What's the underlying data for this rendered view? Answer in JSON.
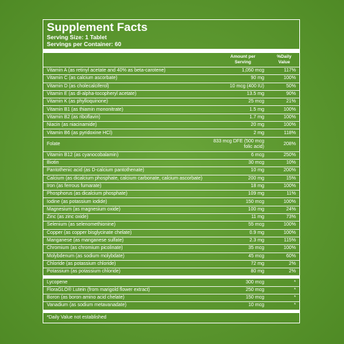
{
  "header": {
    "title": "Supplement Facts",
    "serving_size": "Serving Size: 1 Tablet",
    "servings_per_container": "Servings per Container: 60"
  },
  "columns": {
    "amount": "Amount per Serving",
    "daily_value": "%Daily Value"
  },
  "nutrients": [
    {
      "name": "Vitamin A (as retinyl acetate and 40% as beta-carotene)",
      "amount": "1,050 mcg",
      "daily_value": "117%"
    },
    {
      "name": "Vitamin C (as calcium ascorbate)",
      "amount": "90 mg",
      "daily_value": "100%"
    },
    {
      "name": "Vitamin D (as cholecalciferol)",
      "amount": "10 mcg (400 IU)",
      "daily_value": "50%"
    },
    {
      "name": "Vitamin E (as dl-alpha-tocopheryl acetate)",
      "amount": "13.5 mg",
      "daily_value": "90%"
    },
    {
      "name": "Vitamin K (as phylloquinone)",
      "amount": "25 mcg",
      "daily_value": "21%"
    },
    {
      "name": "Vitamin B1 (as thiamin mononitrate)",
      "amount": "1.5 mg",
      "daily_value": "100%"
    },
    {
      "name": "Vitamin B2 (as riboflavin)",
      "amount": "1.7 mg",
      "daily_value": "100%"
    },
    {
      "name": "Niacin (as niacinamide)",
      "amount": "20 mg",
      "daily_value": "100%"
    },
    {
      "name": "Vitamin B6 (as pyridoxine HCl)",
      "amount": "2 mg",
      "daily_value": "118%"
    },
    {
      "name": "Folate",
      "amount": "833 mcg DFE (500 mcg folic acid)",
      "daily_value": "208%"
    },
    {
      "name": "Vitamin B12 (as cyanocobalamin)",
      "amount": "6 mcg",
      "daily_value": "250%"
    },
    {
      "name": "Biotin",
      "amount": "30 mcg",
      "daily_value": "10%"
    },
    {
      "name": "Pantothenic acid (as D-calcium pantothenate)",
      "amount": "10 mg",
      "daily_value": "200%"
    },
    {
      "name": "Calcium (as dicalcium phosphate, calcium carbonate, calcium ascorbate)",
      "amount": "200 mg",
      "daily_value": "15%"
    },
    {
      "name": "Iron (as ferrous fumarate)",
      "amount": "18 mg",
      "daily_value": "100%"
    },
    {
      "name": "Phosphorus (as dicalcium phosphate)",
      "amount": "109 mg",
      "daily_value": "11%"
    },
    {
      "name": "Iodine (as potassium iodide)",
      "amount": "150 mcg",
      "daily_value": "100%"
    },
    {
      "name": "Magnesium (as magnesium oxide)",
      "amount": "100 mg",
      "daily_value": "24%"
    },
    {
      "name": "Zinc (as zinc oxide)",
      "amount": "11 mg",
      "daily_value": "73%"
    },
    {
      "name": "Selenium (as selenomethionine)",
      "amount": "55 mcg",
      "daily_value": "100%"
    },
    {
      "name": "Copper (as copper bisglycinate chelate)",
      "amount": "0.9 mg",
      "daily_value": "100%"
    },
    {
      "name": "Manganese (as manganese sulfate)",
      "amount": "2.3 mg",
      "daily_value": "115%"
    },
    {
      "name": "Chromium (as chromium picolinate)",
      "amount": "35 mcg",
      "daily_value": "100%"
    },
    {
      "name": "Molybdenum (as sodium molybdate)",
      "amount": "45 mcg",
      "daily_value": "60%"
    },
    {
      "name": "Chloride (as potassium chloride)",
      "amount": "72 mg",
      "daily_value": "2%"
    },
    {
      "name": "Potassium (as potassium chloride)",
      "amount": "80 mg",
      "daily_value": "2%"
    }
  ],
  "other_ingredients": [
    {
      "name": "Lycopene",
      "amount": "300 mcg",
      "daily_value": "*"
    },
    {
      "name": "FloraGLO® Lutein (from marigold flower extract)",
      "amount": "250 mcg",
      "daily_value": "*"
    },
    {
      "name": "Boron (as boron amino acid chelate)",
      "amount": "150 mcg",
      "daily_value": "*"
    },
    {
      "name": "Vanadium (as sodium metavanadate)",
      "amount": "10 mcg",
      "daily_value": "*"
    }
  ],
  "footnote": "*Daily Value not established"
}
